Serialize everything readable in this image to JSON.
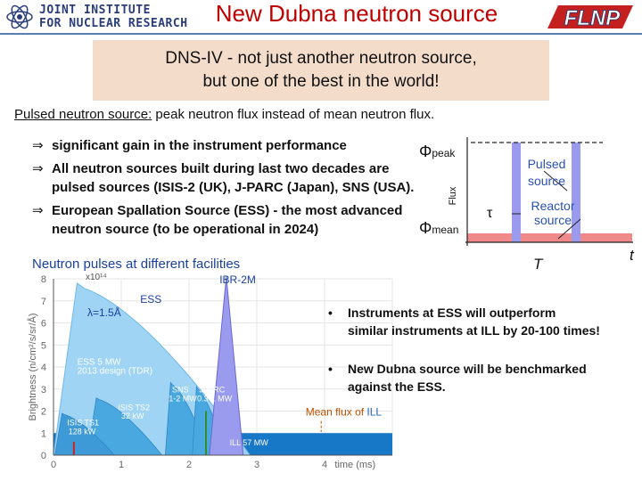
{
  "header": {
    "org_line1": "JOINT INSTITUTE",
    "org_line2": "FOR NUCLEAR RESEARCH",
    "title": "New Dubna neutron source",
    "flnp_logo": "FLNP"
  },
  "banner": {
    "line1": "DNS-IV - not just another neutron source,",
    "line2": "but one of the best in the world!"
  },
  "subtitle": {
    "underlined": "Pulsed neutron source:",
    "rest": " peak neutron flux instead of mean neutron flux."
  },
  "bullets": [
    {
      "arrow": "⇒",
      "lines": [
        "significant gain in the instrument performance"
      ]
    },
    {
      "arrow": "⇒",
      "lines": [
        "All neutron sources built during last two decades are",
        "pulsed sources  (ISIS-2 (UK), J-PARC (Japan), SNS (USA)."
      ]
    },
    {
      "arrow": "⇒",
      "lines": [
        " European Spallation Source (ESS) - the most advanced",
        "neutron source (to be operational in 2024)"
      ]
    }
  ],
  "flux_diagram": {
    "phi_peak": "Φ",
    "phi_peak_sub": "peak",
    "phi_mean": "Φ",
    "phi_mean_sub": "mean",
    "flux_label": "Flux",
    "tau": "τ",
    "pulsed_line1": "Pulsed",
    "pulsed_line2": "source",
    "reactor_line1": "Reactor",
    "reactor_line2": "source",
    "period": "T",
    "time": "t"
  },
  "chart_title": "Neutron pulses at different facilities",
  "chart_data": {
    "type": "area",
    "xlabel": "time (ms)",
    "ylabel": "Brightness (n/cm²/s/sr/Å)",
    "multiplier": "x10¹⁴",
    "xlim": [
      0,
      5
    ],
    "ylim": [
      0,
      8
    ],
    "xticks": [
      "0",
      "1",
      "2",
      "3",
      "4"
    ],
    "yticks": [
      "0",
      "1",
      "2",
      "3",
      "4",
      "5",
      "6",
      "7",
      "8"
    ],
    "annotations": {
      "wavelength": "λ=1.5Å",
      "ess": "ESS",
      "ibr": "IBR-2M",
      "mean_flux_prefix": "Mean flux of ",
      "mean_flux_ill": "ILL",
      "ess5": "ESS 5 MW",
      "design": "2013 design (TDR)",
      "sns_line1": "SNS",
      "sns_line2": "1-2 MW",
      "jparc_line1": "JPARC",
      "jparc_line2": "0.3-1 MW",
      "ts2_line1": "ISIS TS2",
      "ts2_line2": "32 kW",
      "ts1_line1": "ISIS TS1",
      "ts1_line2": "128 kW",
      "ill": "ILL 57 MW"
    },
    "series": [
      {
        "name": "ESS 5 MW",
        "peak": 7.8,
        "start": 0,
        "end": 2.9,
        "color": "#9fd4f5"
      },
      {
        "name": "SNS 1-2 MW",
        "peak": 3.3,
        "start": 1.65,
        "end": 2.3,
        "color": "#4aa8e0"
      },
      {
        "name": "JPARC 0.3-1 MW",
        "peak": 3.1,
        "start": 2.05,
        "end": 2.55,
        "color": "#4aa8e0"
      },
      {
        "name": "ISIS TS2 32 kW",
        "peak": 2.6,
        "start": 0.5,
        "end": 1.6,
        "color": "#4aa8e0"
      },
      {
        "name": "ISIS TS1 128 kW",
        "peak": 1.9,
        "start": 0.02,
        "end": 0.9,
        "color": "#3d9ad6"
      },
      {
        "name": "IBR-2M",
        "peak": 8.1,
        "start": 2.3,
        "end": 2.8,
        "color": "#9a9aee"
      },
      {
        "name": "ILL 57 MW",
        "value": 1.0,
        "color": "#1878c8"
      }
    ]
  },
  "right_bullets": [
    {
      "dot": "•",
      "lines": [
        "Instruments at ESS will outperform",
        "similar instruments at ILL by 20-100 times!"
      ]
    },
    {
      "dot": "•",
      "lines": [
        "New Dubna source will be benchmarked",
        "against the ESS."
      ]
    }
  ],
  "colors": {
    "title": "#c00000",
    "banner_bg": "#f3dcca",
    "chart_title": "#1a3f9e",
    "mean_flux": "#c05000",
    "ibr_pulse": "#9a9aee",
    "reactor_band": "#f08a8a"
  }
}
